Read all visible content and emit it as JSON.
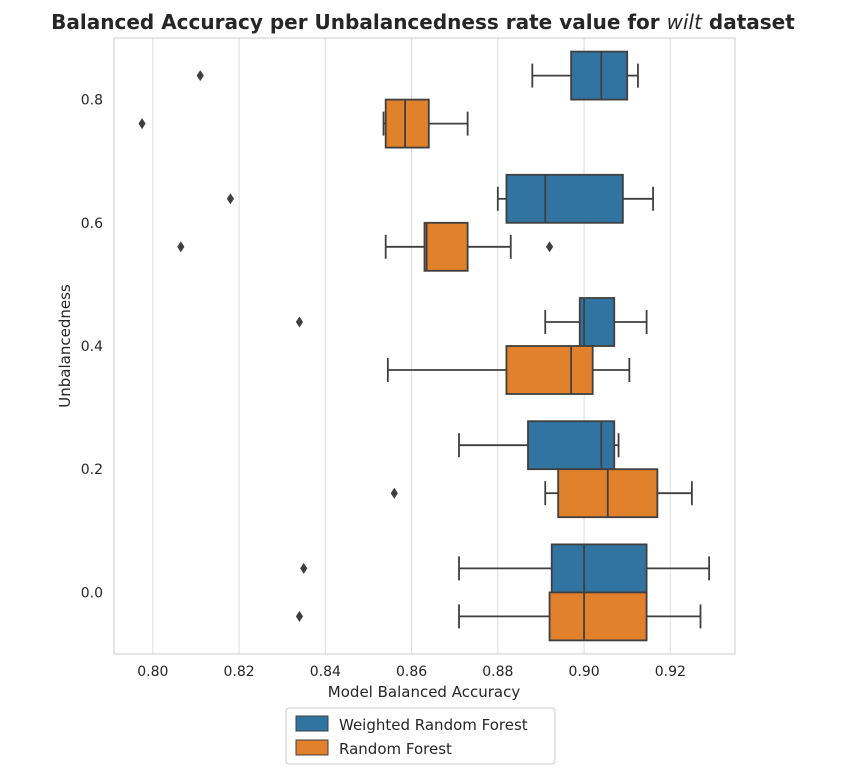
{
  "chart_data": {
    "type": "boxplot",
    "orientation": "horizontal",
    "title": {
      "prefix": "Balanced Accuracy per Unbalancedness rate value for ",
      "dataset": "wilt",
      "suffix": " dataset"
    },
    "xlabel": "Model Balanced Accuracy",
    "ylabel": "Unbalancedness",
    "xlim": [
      0.791,
      0.935
    ],
    "ylim": [
      -0.1,
      0.9
    ],
    "xticks": [
      "0.80",
      "0.82",
      "0.84",
      "0.86",
      "0.88",
      "0.90",
      "0.92"
    ],
    "xtick_values": [
      0.8,
      0.82,
      0.84,
      0.86,
      0.88,
      0.9,
      0.92
    ],
    "categories": [
      "0.8",
      "0.6",
      "0.4",
      "0.2",
      "0.0"
    ],
    "category_values": [
      0.8,
      0.6,
      0.4,
      0.2,
      0.0
    ],
    "grid": "vertical",
    "legend_position": "bottom-center",
    "series": [
      {
        "name": "Weighted Random Forest",
        "color": "#3274a1",
        "boxes": [
          {
            "category": "0.8",
            "whislo": 0.888,
            "q1": 0.897,
            "med": 0.904,
            "q3": 0.91,
            "whishi": 0.9125,
            "fliers": [
              0.811
            ]
          },
          {
            "category": "0.6",
            "whislo": 0.88,
            "q1": 0.882,
            "med": 0.891,
            "q3": 0.909,
            "whishi": 0.916,
            "fliers": [
              0.818
            ]
          },
          {
            "category": "0.4",
            "whislo": 0.891,
            "q1": 0.899,
            "med": 0.9,
            "q3": 0.907,
            "whishi": 0.9145,
            "fliers": [
              0.834
            ]
          },
          {
            "category": "0.2",
            "whislo": 0.871,
            "q1": 0.887,
            "med": 0.904,
            "q3": 0.907,
            "whishi": 0.908,
            "fliers": []
          },
          {
            "category": "0.0",
            "whislo": 0.871,
            "q1": 0.8925,
            "med": 0.9,
            "q3": 0.9145,
            "whishi": 0.929,
            "fliers": [
              0.835
            ]
          }
        ]
      },
      {
        "name": "Random Forest",
        "color": "#e1812c",
        "boxes": [
          {
            "category": "0.8",
            "whislo": 0.8535,
            "q1": 0.854,
            "med": 0.8585,
            "q3": 0.864,
            "whishi": 0.873,
            "fliers": [
              0.7975
            ]
          },
          {
            "category": "0.6",
            "whislo": 0.854,
            "q1": 0.863,
            "med": 0.8635,
            "q3": 0.873,
            "whishi": 0.883,
            "fliers": [
              0.8065,
              0.892
            ]
          },
          {
            "category": "0.4",
            "whislo": 0.8545,
            "q1": 0.882,
            "med": 0.897,
            "q3": 0.902,
            "whishi": 0.9105,
            "fliers": []
          },
          {
            "category": "0.2",
            "whislo": 0.891,
            "q1": 0.894,
            "med": 0.9055,
            "q3": 0.917,
            "whishi": 0.925,
            "fliers": [
              0.856
            ]
          },
          {
            "category": "0.0",
            "whislo": 0.871,
            "q1": 0.892,
            "med": 0.9,
            "q3": 0.9145,
            "whishi": 0.927,
            "fliers": [
              0.834
            ]
          }
        ]
      }
    ]
  }
}
